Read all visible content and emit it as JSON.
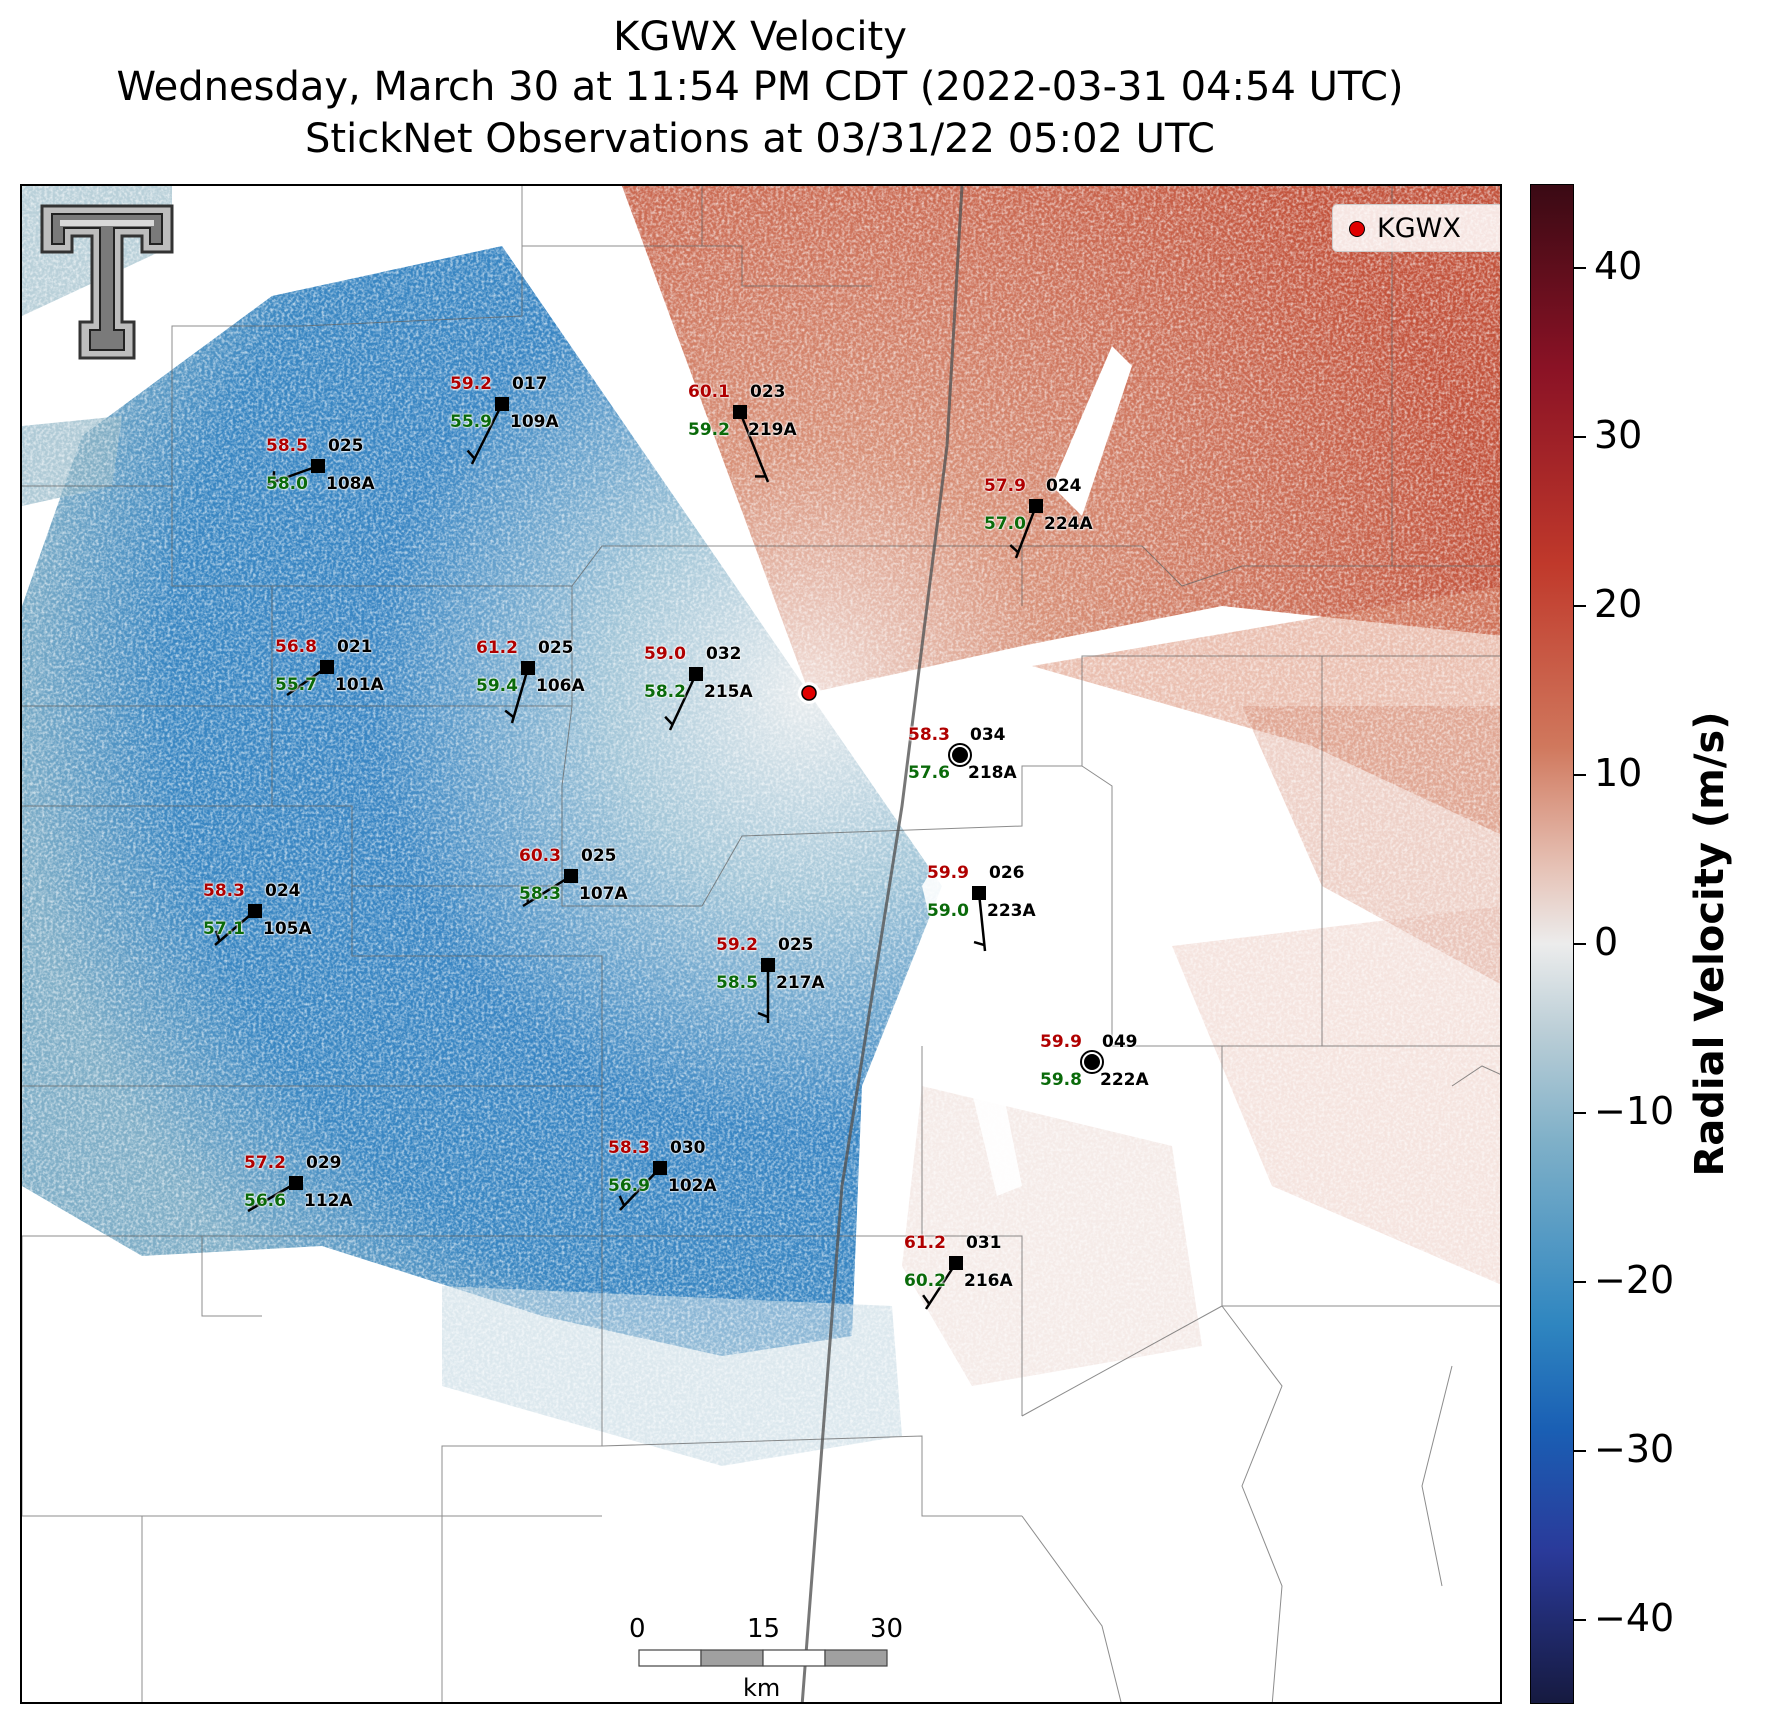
{
  "title": {
    "line1": "KGWX Velocity",
    "line2": "Wednesday, March 30 at 11:54 PM CDT (2022-03-31 04:54 UTC)",
    "line3": "StickNet Observations at 03/31/22 05:02 UTC"
  },
  "legend": {
    "label": "KGWX",
    "marker_color": "#e00000"
  },
  "colorbar": {
    "label": "Radial Velocity (m/s)",
    "ticks": [
      "40",
      "30",
      "20",
      "10",
      "0",
      "−10",
      "−20",
      "−30",
      "−40"
    ],
    "range": [
      -45,
      45
    ]
  },
  "scale_bar": {
    "labels": [
      "0",
      "15",
      "30"
    ],
    "unit": "km"
  },
  "logo": "texas-tech-double-t",
  "stations": [
    {
      "id": "109A",
      "temp": "59.2",
      "dew": "55.9",
      "pres": "017",
      "kind": "square"
    },
    {
      "id": "219A",
      "temp": "60.1",
      "dew": "59.2",
      "pres": "023",
      "kind": "square"
    },
    {
      "id": "108A",
      "temp": "58.5",
      "dew": "58.0",
      "pres": "025",
      "kind": "square"
    },
    {
      "id": "224A",
      "temp": "57.9",
      "dew": "57.0",
      "pres": "024",
      "kind": "square"
    },
    {
      "id": "101A",
      "temp": "56.8",
      "dew": "55.7",
      "pres": "021",
      "kind": "square"
    },
    {
      "id": "106A",
      "temp": "61.2",
      "dew": "59.4",
      "pres": "025",
      "kind": "square"
    },
    {
      "id": "215A",
      "temp": "59.0",
      "dew": "58.2",
      "pres": "032",
      "kind": "square"
    },
    {
      "id": "218A",
      "temp": "58.3",
      "dew": "57.6",
      "pres": "034",
      "kind": "calm"
    },
    {
      "id": "107A",
      "temp": "60.3",
      "dew": "58.3",
      "pres": "025",
      "kind": "square"
    },
    {
      "id": "105A",
      "temp": "58.3",
      "dew": "57.1",
      "pres": "024",
      "kind": "square"
    },
    {
      "id": "223A",
      "temp": "59.9",
      "dew": "59.0",
      "pres": "026",
      "kind": "square"
    },
    {
      "id": "217A",
      "temp": "59.2",
      "dew": "58.5",
      "pres": "025",
      "kind": "square"
    },
    {
      "id": "222A",
      "temp": "59.9",
      "dew": "59.8",
      "pres": "049",
      "kind": "calm"
    },
    {
      "id": "102A",
      "temp": "58.3",
      "dew": "56.9",
      "pres": "030",
      "kind": "square"
    },
    {
      "id": "112A",
      "temp": "57.2",
      "dew": "56.6",
      "pres": "029",
      "kind": "square"
    },
    {
      "id": "216A",
      "temp": "61.2",
      "dew": "60.2",
      "pres": "031",
      "kind": "square"
    }
  ]
}
